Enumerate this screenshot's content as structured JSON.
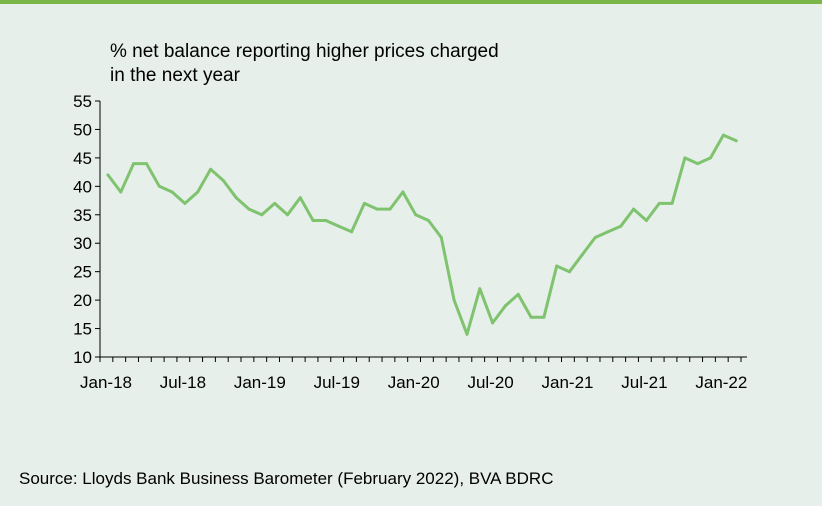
{
  "colors": {
    "background": "#e7efea",
    "accent_rule": "#7ab648",
    "line": "#7fc36e",
    "axis": "#000000"
  },
  "source": "Source: Lloyds Bank Business Barometer (February 2022), BVA BDRC",
  "chart_data": {
    "type": "line",
    "title": "% net balance reporting higher prices charged\nin the next year",
    "xlabel": "",
    "ylabel": "",
    "ylim": [
      10,
      55
    ],
    "yticks": [
      10,
      15,
      20,
      25,
      30,
      35,
      40,
      45,
      50,
      55
    ],
    "xtick_labels": [
      "Jan-18",
      "Jul-18",
      "Jan-19",
      "Jul-19",
      "Jan-20",
      "Jul-20",
      "Jan-21",
      "Jul-21",
      "Jan-22"
    ],
    "grid": false,
    "legend": "none",
    "series": [
      {
        "x": [
          "Jan-18",
          "Feb-18",
          "Mar-18",
          "Apr-18",
          "May-18",
          "Jun-18",
          "Jul-18",
          "Aug-18",
          "Sep-18",
          "Oct-18",
          "Nov-18",
          "Dec-18",
          "Jan-19",
          "Feb-19",
          "Mar-19",
          "Apr-19",
          "May-19",
          "Jun-19",
          "Jul-19",
          "Aug-19",
          "Sep-19",
          "Oct-19",
          "Nov-19",
          "Dec-19",
          "Jan-20",
          "Feb-20",
          "Mar-20",
          "Apr-20",
          "May-20",
          "Jun-20",
          "Jul-20",
          "Aug-20",
          "Sep-20",
          "Oct-20",
          "Nov-20",
          "Dec-20",
          "Jan-21",
          "Feb-21",
          "Mar-21",
          "Apr-21",
          "May-21",
          "Jun-21",
          "Jul-21",
          "Aug-21",
          "Sep-21",
          "Oct-21",
          "Nov-21",
          "Dec-21",
          "Jan-22",
          "Feb-22"
        ],
        "values": [
          42,
          39,
          44,
          44,
          40,
          39,
          37,
          39,
          43,
          41,
          38,
          36,
          35,
          37,
          35,
          38,
          34,
          34,
          33,
          32,
          37,
          36,
          36,
          39,
          35,
          34,
          31,
          20,
          14,
          22,
          16,
          19,
          21,
          17,
          17,
          26,
          25,
          28,
          31,
          32,
          33,
          36,
          34,
          37,
          37,
          45,
          44,
          45,
          49,
          48
        ]
      }
    ]
  }
}
